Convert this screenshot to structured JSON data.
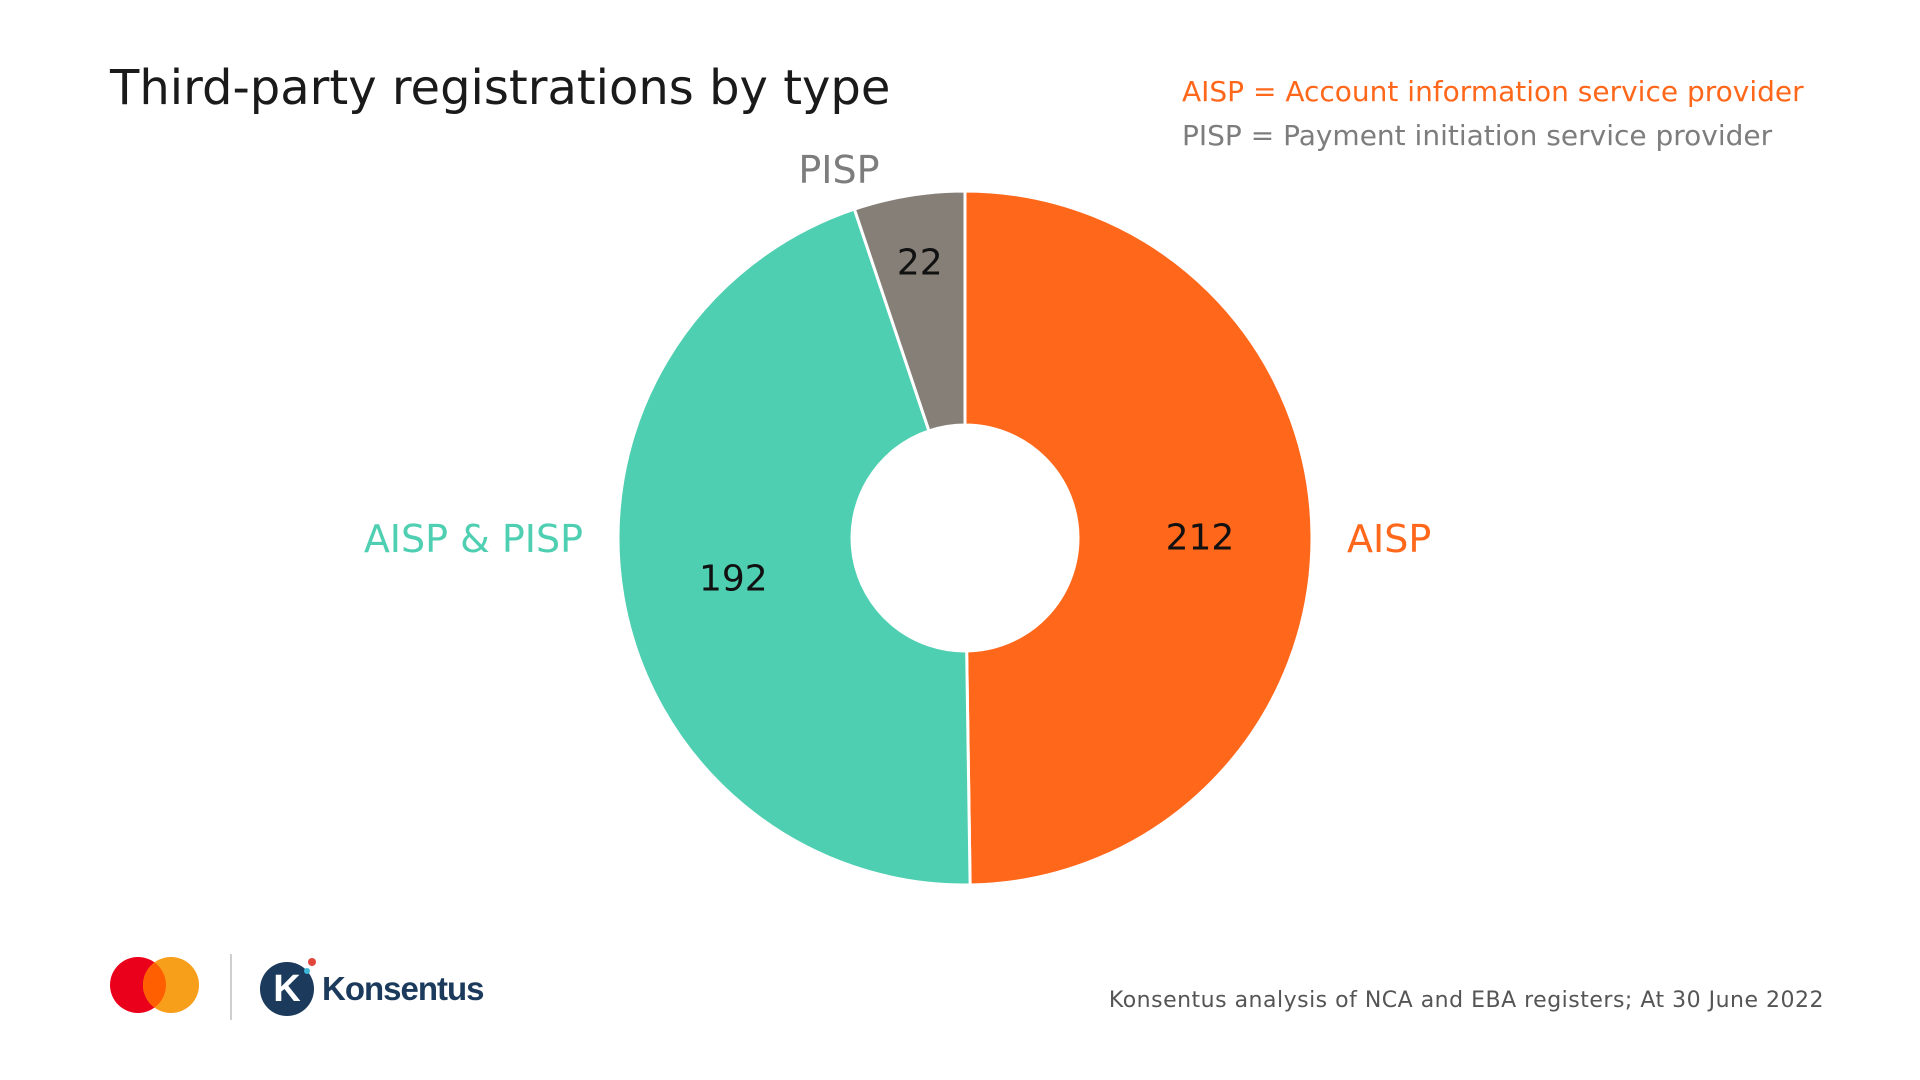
{
  "title": "Third-party registrations by type",
  "legend": {
    "aisp_definition": "AISP = Account information service provider",
    "pisp_definition": "PISP = Payment initiation service provider"
  },
  "chart_data": {
    "type": "pie",
    "variant": "donut",
    "title": "Third-party registrations by type",
    "categories": [
      "AISP",
      "AISP & PISP",
      "PISP"
    ],
    "values": [
      212,
      192,
      22
    ],
    "colors": [
      "#ff671b",
      "#4fcfb1",
      "#857f78"
    ],
    "start_angle_deg": 0,
    "direction": "clockwise"
  },
  "source": "Konsentus analysis of NCA and EBA registers;  At 30 June 2022",
  "logos": {
    "mastercard_colors": [
      "#eb001b",
      "#f79e1b",
      "#ff5f00"
    ],
    "konsentus_mark": "K",
    "konsentus_wordmark": "Konsentus"
  }
}
